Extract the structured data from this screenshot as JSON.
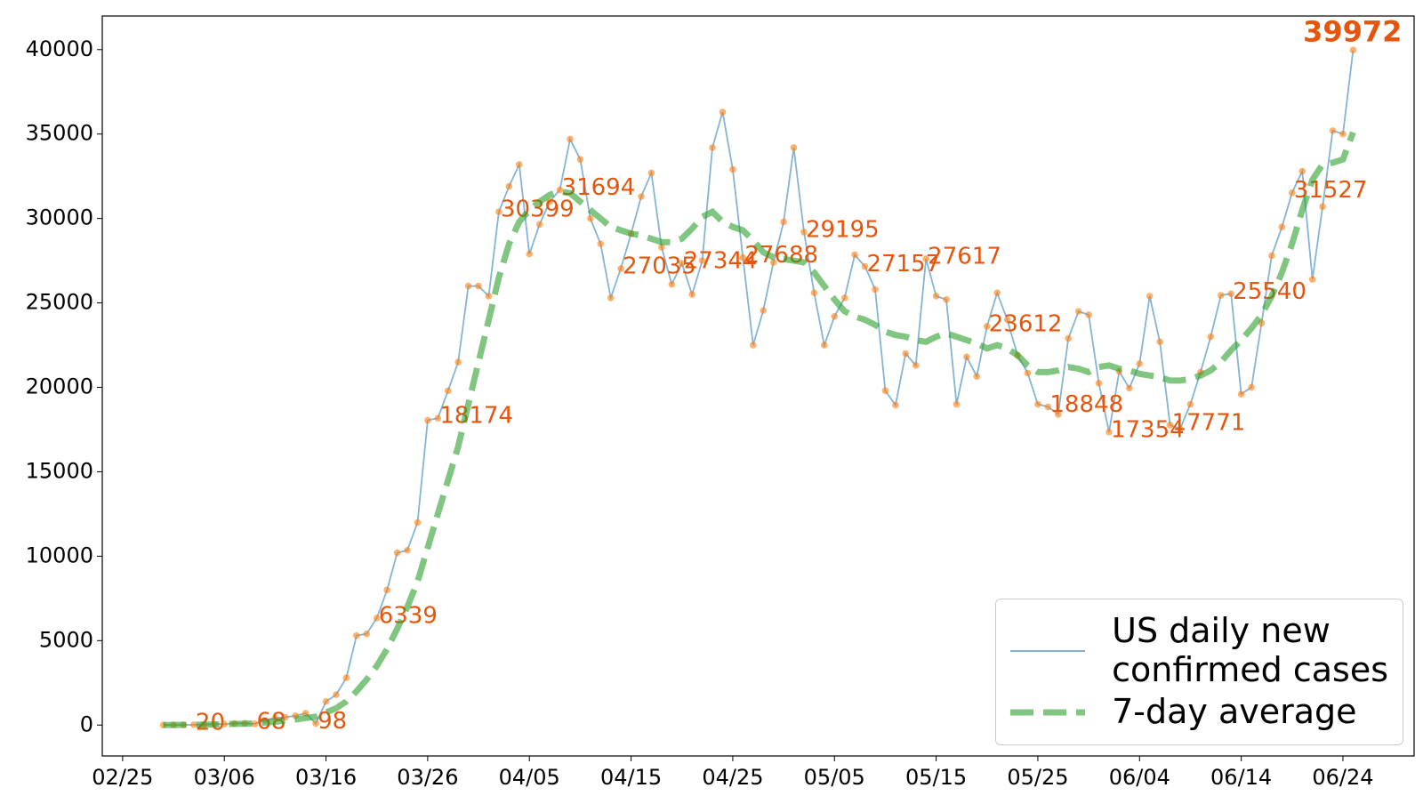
{
  "chart_data": {
    "type": "line",
    "x": [
      "02/29",
      "03/01",
      "03/02",
      "03/03",
      "03/04",
      "03/05",
      "03/06",
      "03/07",
      "03/08",
      "03/09",
      "03/10",
      "03/11",
      "03/12",
      "03/13",
      "03/14",
      "03/15",
      "03/16",
      "03/17",
      "03/18",
      "03/19",
      "03/20",
      "03/21",
      "03/22",
      "03/23",
      "03/24",
      "03/25",
      "03/26",
      "03/27",
      "03/28",
      "03/29",
      "03/30",
      "03/31",
      "04/01",
      "04/02",
      "04/03",
      "04/04",
      "04/05",
      "04/06",
      "04/07",
      "04/08",
      "04/09",
      "04/10",
      "04/11",
      "04/12",
      "04/13",
      "04/14",
      "04/15",
      "04/16",
      "04/17",
      "04/18",
      "04/19",
      "04/20",
      "04/21",
      "04/22",
      "04/23",
      "04/24",
      "04/25",
      "04/26",
      "04/27",
      "04/28",
      "04/29",
      "04/30",
      "05/01",
      "05/02",
      "05/03",
      "05/04",
      "05/05",
      "05/06",
      "05/07",
      "05/08",
      "05/09",
      "05/10",
      "05/11",
      "05/12",
      "05/13",
      "05/14",
      "05/15",
      "05/16",
      "05/17",
      "05/18",
      "05/19",
      "05/20",
      "05/21",
      "05/22",
      "05/23",
      "05/24",
      "05/25",
      "05/26",
      "05/27",
      "05/28",
      "05/29",
      "05/30",
      "05/31",
      "06/01",
      "06/02",
      "06/03",
      "06/04",
      "06/05",
      "06/06",
      "06/07",
      "06/08",
      "06/09",
      "06/10",
      "06/11",
      "06/12",
      "06/13",
      "06/14",
      "06/15",
      "06/16",
      "06/17",
      "06/18",
      "06/19",
      "06/20",
      "06/21",
      "06/22",
      "06/23",
      "06/24",
      "06/25"
    ],
    "series": [
      {
        "name": "US daily new\nconfirmed cases",
        "color": "#1f77b4",
        "marker_color": "#ff7f0e",
        "label_color": "#e6550d",
        "values": [
          6,
          8,
          10,
          20,
          30,
          50,
          60,
          90,
          110,
          68,
          290,
          420,
          460,
          550,
          700,
          98,
          1400,
          1800,
          2800,
          5300,
          5400,
          6339,
          8000,
          10200,
          10350,
          12000,
          18050,
          18174,
          19800,
          21500,
          26000,
          26000,
          25400,
          30399,
          31900,
          33200,
          27900,
          29650,
          31000,
          31694,
          34700,
          33500,
          30000,
          28500,
          25300,
          27035,
          29100,
          31300,
          32700,
          28300,
          26100,
          27344,
          25500,
          27500,
          34200,
          36300,
          32900,
          27688,
          22500,
          24550,
          27400,
          29800,
          34200,
          29195,
          25600,
          22500,
          24200,
          25300,
          27850,
          27157,
          25800,
          19800,
          18950,
          22000,
          21300,
          27617,
          25400,
          25200,
          19000,
          21800,
          20650,
          23612,
          25600,
          24000,
          21900,
          20850,
          19000,
          18848,
          18400,
          22900,
          24500,
          24300,
          20250,
          17354,
          20950,
          19950,
          21400,
          25400,
          22700,
          17771,
          17550,
          19000,
          20900,
          23000,
          25450,
          25540,
          19600,
          20000,
          23800,
          27800,
          29500,
          31527,
          32800,
          26400,
          30700,
          35200,
          35000,
          39972
        ]
      },
      {
        "name": "7-day average",
        "color": "#2ca02c",
        "dashed": true,
        "values": [
          10,
          10,
          15,
          20,
          25,
          35,
          50,
          70,
          80,
          110,
          150,
          200,
          260,
          330,
          420,
          500,
          750,
          1000,
          1400,
          2000,
          2700,
          3500,
          4500,
          5700,
          7000,
          8500,
          10500,
          12500,
          14500,
          16500,
          19000,
          21500,
          24000,
          26500,
          28500,
          29800,
          30500,
          31000,
          31400,
          31600,
          31500,
          31000,
          30500,
          30000,
          29500,
          29300,
          29100,
          29000,
          28800,
          28600,
          28600,
          28800,
          29400,
          30100,
          30400,
          29800,
          29500,
          29300,
          28700,
          28000,
          27700,
          27600,
          27500,
          27400,
          26800,
          26000,
          25200,
          24500,
          24200,
          24000,
          23700,
          23300,
          23100,
          23000,
          22800,
          22700,
          23000,
          23200,
          23000,
          22800,
          22600,
          22300,
          22500,
          22300,
          21900,
          21300,
          20900,
          20900,
          21000,
          21200,
          21100,
          20900,
          21200,
          21300,
          21100,
          21000,
          20800,
          20700,
          20600,
          20400,
          20400,
          20500,
          20700,
          21000,
          21500,
          22200,
          22800,
          23500,
          24300,
          25400,
          26800,
          28500,
          30500,
          32300,
          33200,
          33300,
          33500,
          35100
        ]
      }
    ],
    "xlim": [
      "02/23",
      "07/01"
    ],
    "xticks": [
      "02/25",
      "03/06",
      "03/16",
      "03/26",
      "04/05",
      "04/15",
      "04/25",
      "05/05",
      "05/15",
      "05/25",
      "06/04",
      "06/14",
      "06/24"
    ],
    "ylim": [
      -1830,
      41990
    ],
    "yticks": [
      0,
      5000,
      10000,
      15000,
      20000,
      25000,
      30000,
      35000,
      40000
    ],
    "legend": "lower right"
  }
}
